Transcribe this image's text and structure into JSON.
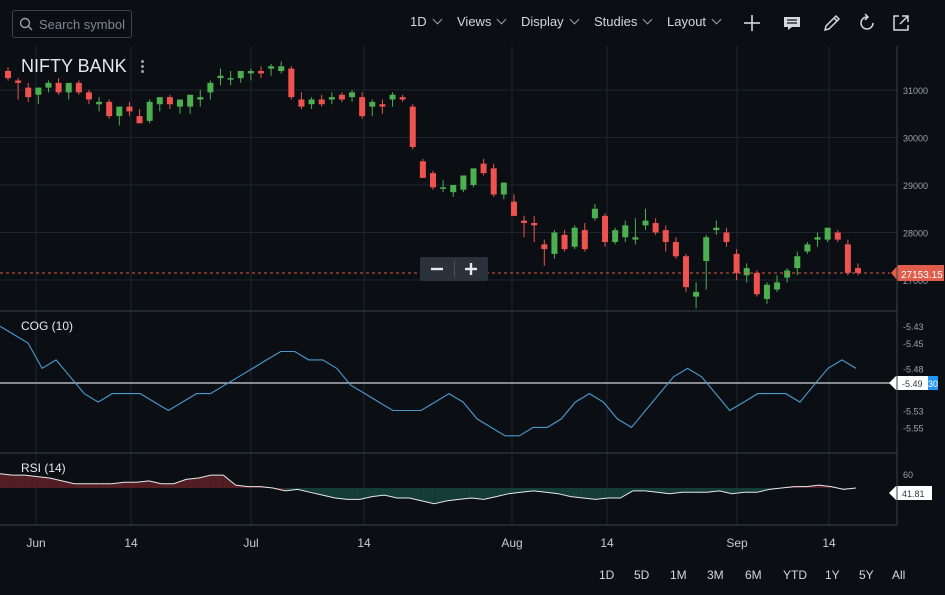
{
  "toolbar": {
    "search_placeholder": "Search symbol",
    "interval": "1D",
    "views": "Views",
    "display": "Display",
    "studies": "Studies",
    "layout": "Layout",
    "tools": [
      "plus-icon",
      "news-icon",
      "pencil-icon",
      "refresh-icon",
      "popout-icon"
    ]
  },
  "symbol": "NIFTY BANK",
  "main_pane": {
    "yticks": [
      "31000",
      "30000",
      "29000",
      "28000",
      "27000"
    ],
    "last_price": "27153.15",
    "colors": {
      "up": "#4caf50",
      "down": "#ef5350",
      "last": "#e05d4b"
    }
  },
  "cog_pane": {
    "label": "COG (10)",
    "yticks": [
      "-5.43",
      "-5.45",
      "-5.48",
      "-5.50",
      "-5.53",
      "-5.55"
    ],
    "value_badge": "-5.49",
    "signal_badge": "30",
    "color": "#4a9ad0"
  },
  "rsi_pane": {
    "label": "RSI (14)",
    "ytick_top": "60",
    "value_badge": "41.81"
  },
  "xaxis": [
    "Jun",
    "14",
    "Jul",
    "14",
    "Aug",
    "14",
    "Sep",
    "14"
  ],
  "ranges": [
    "1D",
    "5D",
    "1M",
    "3M",
    "6M",
    "YTD",
    "1Y",
    "5Y",
    "All"
  ],
  "chart_data": {
    "type": "candlestick",
    "symbol": "NIFTY BANK",
    "ylim": [
      26600,
      31600
    ],
    "x_labels": [
      "Jun",
      "14",
      "Jul",
      "14",
      "Aug",
      "14",
      "Sep",
      "14"
    ],
    "candles": [
      [
        31400,
        31480,
        31200,
        31250
      ],
      [
        31200,
        31250,
        30800,
        31150
      ],
      [
        31050,
        31150,
        30750,
        30850
      ],
      [
        30900,
        31050,
        30700,
        31050
      ],
      [
        31050,
        31200,
        30950,
        31150
      ],
      [
        31150,
        31250,
        30900,
        30950
      ],
      [
        30950,
        31100,
        30800,
        31150
      ],
      [
        31150,
        31200,
        30900,
        30950
      ],
      [
        30950,
        31000,
        30700,
        30800
      ],
      [
        30700,
        30850,
        30550,
        30750
      ],
      [
        30750,
        30800,
        30400,
        30450
      ],
      [
        30450,
        30600,
        30250,
        30650
      ],
      [
        30650,
        30750,
        30450,
        30550
      ],
      [
        30450,
        30600,
        30300,
        30300
      ],
      [
        30350,
        30800,
        30300,
        30750
      ],
      [
        30700,
        30850,
        30550,
        30850
      ],
      [
        30850,
        30900,
        30600,
        30700
      ],
      [
        30650,
        30800,
        30500,
        30800
      ],
      [
        30650,
        30900,
        30500,
        30900
      ],
      [
        30800,
        31000,
        30650,
        30850
      ],
      [
        30950,
        31200,
        30800,
        31150
      ],
      [
        31250,
        31450,
        31100,
        31300
      ],
      [
        31250,
        31400,
        31100,
        31250
      ],
      [
        31250,
        31400,
        31150,
        31400
      ],
      [
        31350,
        31450,
        31200,
        31400
      ],
      [
        31400,
        31500,
        31250,
        31350
      ],
      [
        31450,
        31550,
        31300,
        31500
      ],
      [
        31400,
        31600,
        31350,
        31500
      ],
      [
        31450,
        31500,
        30800,
        30850
      ],
      [
        30800,
        30950,
        30600,
        30650
      ],
      [
        30700,
        30850,
        30600,
        30800
      ],
      [
        30800,
        30900,
        30650,
        30700
      ],
      [
        30800,
        30950,
        30700,
        30850
      ],
      [
        30900,
        30950,
        30750,
        30800
      ],
      [
        30850,
        31000,
        30750,
        30950
      ],
      [
        30850,
        30950,
        30400,
        30450
      ],
      [
        30650,
        30800,
        30450,
        30750
      ],
      [
        30700,
        30800,
        30500,
        30650
      ],
      [
        30800,
        30950,
        30650,
        30900
      ],
      [
        30850,
        30900,
        30750,
        30800
      ],
      [
        30650,
        30700,
        29750,
        29800
      ],
      [
        29500,
        29550,
        29150,
        29150
      ],
      [
        29250,
        29300,
        28900,
        28950
      ],
      [
        28950,
        29100,
        28850,
        28950
      ],
      [
        28850,
        29000,
        28750,
        29000
      ],
      [
        28900,
        29200,
        28850,
        29200
      ],
      [
        29000,
        29350,
        28950,
        29350
      ],
      [
        29450,
        29550,
        29200,
        29250
      ],
      [
        29350,
        29450,
        28750,
        28800
      ],
      [
        28800,
        29050,
        28700,
        29050
      ],
      [
        28650,
        28800,
        28350,
        28350
      ],
      [
        28250,
        28350,
        27900,
        28200
      ],
      [
        28200,
        28350,
        27800,
        28150
      ],
      [
        27750,
        27850,
        27300,
        27650
      ],
      [
        27550,
        28050,
        27450,
        28000
      ],
      [
        27950,
        28050,
        27600,
        27650
      ],
      [
        27700,
        28150,
        27650,
        28100
      ],
      [
        28050,
        28200,
        27600,
        27650
      ],
      [
        28300,
        28600,
        28250,
        28500
      ],
      [
        28350,
        28400,
        27700,
        27800
      ],
      [
        27800,
        28100,
        27750,
        28050
      ],
      [
        27900,
        28250,
        27800,
        28150
      ],
      [
        27850,
        28300,
        27750,
        27900
      ],
      [
        28150,
        28500,
        28050,
        28250
      ],
      [
        28200,
        28300,
        27950,
        28000
      ],
      [
        28050,
        28150,
        27600,
        27800
      ],
      [
        27800,
        27900,
        27450,
        27500
      ],
      [
        27500,
        27550,
        26750,
        26850
      ],
      [
        26650,
        26950,
        26400,
        26750
      ],
      [
        27400,
        27950,
        26800,
        27900
      ],
      [
        28050,
        28250,
        27950,
        28100
      ],
      [
        28000,
        28100,
        27700,
        27800
      ],
      [
        27550,
        27650,
        27000,
        27150
      ],
      [
        27100,
        27350,
        26950,
        27250
      ],
      [
        27150,
        27200,
        26650,
        26700
      ],
      [
        26600,
        26950,
        26500,
        26900
      ],
      [
        26800,
        27100,
        26750,
        26950
      ],
      [
        27050,
        27250,
        26950,
        27200
      ],
      [
        27250,
        27600,
        27100,
        27500
      ],
      [
        27600,
        27800,
        27550,
        27750
      ],
      [
        27850,
        28000,
        27700,
        27900
      ],
      [
        27850,
        28100,
        27800,
        28100
      ],
      [
        28000,
        28050,
        27800,
        27850
      ],
      [
        27750,
        27850,
        27100,
        27150
      ],
      [
        27250,
        27350,
        27100,
        27150
      ]
    ],
    "last": 27153.15,
    "cog": {
      "name": "COG (10)",
      "ylim": [
        -5.565,
        -5.425
      ],
      "values": [
        -5.43,
        -5.44,
        -5.45,
        -5.48,
        -5.47,
        -5.49,
        -5.51,
        -5.52,
        -5.51,
        -5.51,
        -5.51,
        -5.52,
        -5.53,
        -5.52,
        -5.51,
        -5.51,
        -5.5,
        -5.49,
        -5.48,
        -5.47,
        -5.46,
        -5.46,
        -5.47,
        -5.47,
        -5.48,
        -5.5,
        -5.51,
        -5.52,
        -5.53,
        -5.53,
        -5.53,
        -5.52,
        -5.51,
        -5.52,
        -5.54,
        -5.55,
        -5.56,
        -5.56,
        -5.55,
        -5.55,
        -5.54,
        -5.52,
        -5.51,
        -5.52,
        -5.54,
        -5.55,
        -5.53,
        -5.51,
        -5.49,
        -5.48,
        -5.49,
        -5.51,
        -5.53,
        -5.52,
        -5.51,
        -5.51,
        -5.51,
        -5.52,
        -5.5,
        -5.48,
        -5.47,
        -5.48
      ]
    },
    "rsi": {
      "name": "RSI (14)",
      "ylim": [
        36,
        64
      ],
      "midline": 50,
      "values": [
        60,
        59,
        59,
        58,
        57,
        55,
        53,
        53,
        53,
        53,
        54,
        54,
        55,
        53,
        53,
        56,
        57,
        59,
        59,
        52,
        51,
        51,
        50,
        48,
        49,
        47,
        45,
        43,
        42,
        42,
        44,
        45,
        43,
        43,
        41,
        39,
        41,
        42,
        43,
        42,
        44,
        46,
        47,
        48,
        47,
        46,
        44,
        43,
        42,
        43,
        43,
        48,
        48,
        47,
        46,
        47,
        47,
        47,
        48,
        46,
        47,
        47,
        49,
        50,
        51,
        51,
        52,
        51,
        49,
        50
      ]
    }
  }
}
